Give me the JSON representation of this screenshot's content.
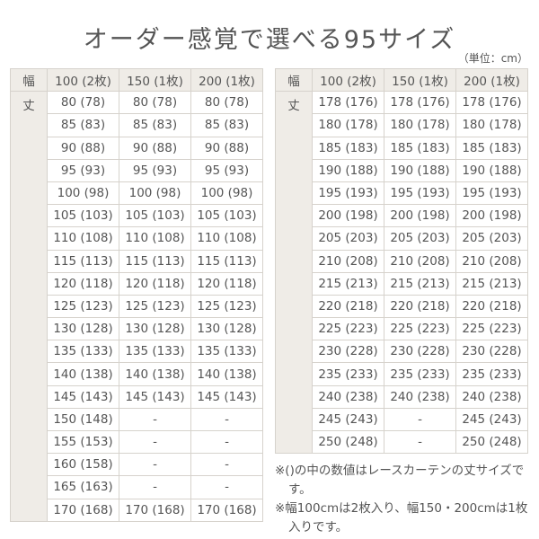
{
  "title": "オーダー感覚で選べる95サイズ",
  "unit": "（単位：cm）",
  "width_label": "幅",
  "length_label": "丈",
  "columns": [
    "100 (2枚)",
    "150 (1枚)",
    "200 (1枚)"
  ],
  "left_table": [
    [
      "80 (78)",
      "80 (78)",
      "80 (78)"
    ],
    [
      "85 (83)",
      "85 (83)",
      "85 (83)"
    ],
    [
      "90 (88)",
      "90 (88)",
      "90 (88)"
    ],
    [
      "95 (93)",
      "95 (93)",
      "95 (93)"
    ],
    [
      "100 (98)",
      "100 (98)",
      "100 (98)"
    ],
    [
      "105 (103)",
      "105 (103)",
      "105 (103)"
    ],
    [
      "110 (108)",
      "110 (108)",
      "110 (108)"
    ],
    [
      "115 (113)",
      "115 (113)",
      "115 (113)"
    ],
    [
      "120 (118)",
      "120 (118)",
      "120 (118)"
    ],
    [
      "125 (123)",
      "125 (123)",
      "125 (123)"
    ],
    [
      "130 (128)",
      "130 (128)",
      "130 (128)"
    ],
    [
      "135 (133)",
      "135 (133)",
      "135 (133)"
    ],
    [
      "140 (138)",
      "140 (138)",
      "140 (138)"
    ],
    [
      "145 (143)",
      "145 (143)",
      "145 (143)"
    ],
    [
      "150 (148)",
      "-",
      "-"
    ],
    [
      "155 (153)",
      "-",
      "-"
    ],
    [
      "160 (158)",
      "-",
      "-"
    ],
    [
      "165 (163)",
      "-",
      "-"
    ],
    [
      "170 (168)",
      "170 (168)",
      "170 (168)"
    ]
  ],
  "right_table": [
    [
      "178 (176)",
      "178 (176)",
      "178 (176)"
    ],
    [
      "180 (178)",
      "180 (178)",
      "180 (178)"
    ],
    [
      "185 (183)",
      "185 (183)",
      "185 (183)"
    ],
    [
      "190 (188)",
      "190 (188)",
      "190 (188)"
    ],
    [
      "195 (193)",
      "195 (193)",
      "195 (193)"
    ],
    [
      "200 (198)",
      "200 (198)",
      "200 (198)"
    ],
    [
      "205 (203)",
      "205 (203)",
      "205 (203)"
    ],
    [
      "210 (208)",
      "210 (208)",
      "210 (208)"
    ],
    [
      "215 (213)",
      "215 (213)",
      "215 (213)"
    ],
    [
      "220 (218)",
      "220 (218)",
      "220 (218)"
    ],
    [
      "225 (223)",
      "225 (223)",
      "225 (223)"
    ],
    [
      "230 (228)",
      "230 (228)",
      "230 (228)"
    ],
    [
      "235 (233)",
      "235 (233)",
      "235 (233)"
    ],
    [
      "240 (238)",
      "240 (238)",
      "240 (238)"
    ],
    [
      "245 (243)",
      "-",
      "245 (243)"
    ],
    [
      "250 (248)",
      "-",
      "250 (248)"
    ]
  ],
  "notes": [
    "※()の中の数値はレースカーテンの丈サイズです。",
    "※幅100cmは2枚入り、幅150・200cmは1枚入りです。"
  ]
}
